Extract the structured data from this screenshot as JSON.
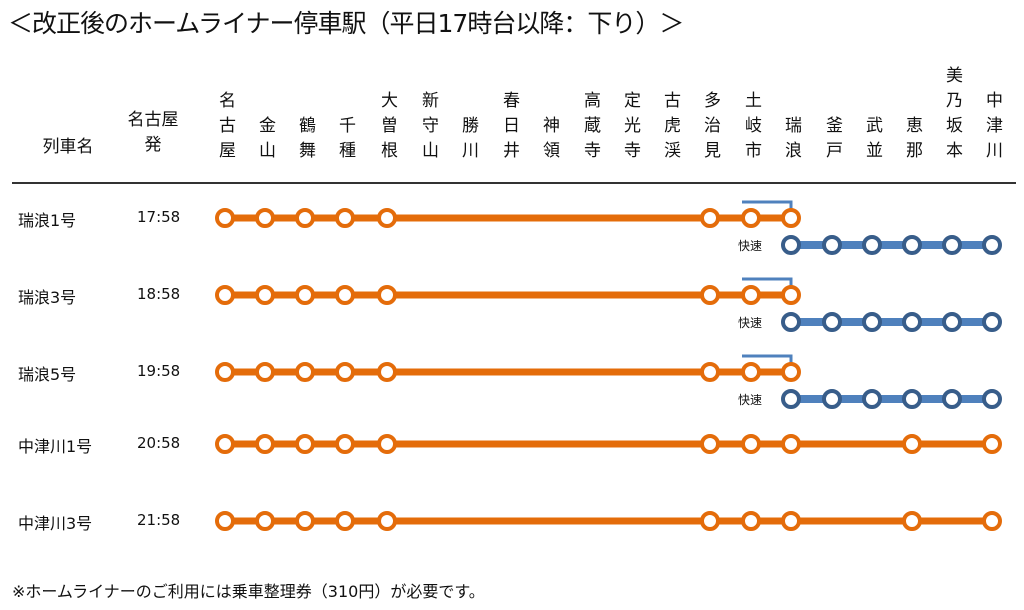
{
  "title": "＜改正後のホームライナー停車駅（平日17時台以降：下り）＞",
  "headers": {
    "train_name": "列車名",
    "departure": "名古屋発"
  },
  "stations": [
    "名古屋",
    "金山",
    "鶴舞",
    "千種",
    "大曽根",
    "新守山",
    "勝川",
    "春日井",
    "神領",
    "高蔵寺",
    "定光寺",
    "古虎渓",
    "多治見",
    "土岐市",
    "瑞浪",
    "釜戸",
    "武並",
    "恵那",
    "美乃坂本",
    "中津川"
  ],
  "trains": [
    {
      "name": "瑞浪1号",
      "time": "17:58",
      "stops": [
        0,
        1,
        2,
        3,
        4,
        12,
        13,
        14
      ],
      "end": 14,
      "rapid": {
        "label": "快速",
        "from": 14,
        "to": 19,
        "stops": [
          14,
          15,
          16,
          17,
          18,
          19
        ]
      }
    },
    {
      "name": "瑞浪3号",
      "time": "18:58",
      "stops": [
        0,
        1,
        2,
        3,
        4,
        12,
        13,
        14
      ],
      "end": 14,
      "rapid": {
        "label": "快速",
        "from": 14,
        "to": 19,
        "stops": [
          14,
          15,
          16,
          17,
          18,
          19
        ]
      }
    },
    {
      "name": "瑞浪5号",
      "time": "19:58",
      "stops": [
        0,
        1,
        2,
        3,
        4,
        12,
        13,
        14
      ],
      "end": 14,
      "rapid": {
        "label": "快速",
        "from": 14,
        "to": 19,
        "stops": [
          14,
          15,
          16,
          17,
          18,
          19
        ]
      }
    },
    {
      "name": "中津川1号",
      "time": "20:58",
      "stops": [
        0,
        1,
        2,
        3,
        4,
        12,
        13,
        14,
        17,
        19
      ],
      "end": 19
    },
    {
      "name": "中津川3号",
      "time": "21:58",
      "stops": [
        0,
        1,
        2,
        3,
        4,
        12,
        13,
        14,
        17,
        19
      ],
      "end": 19
    }
  ],
  "note": "※ホームライナーのご利用には乗車整理券（310円）が必要です。",
  "colors": {
    "liner": "#e46c0a",
    "rapid_line": "#4f81bd",
    "rapid_stop": "#385d8a"
  }
}
